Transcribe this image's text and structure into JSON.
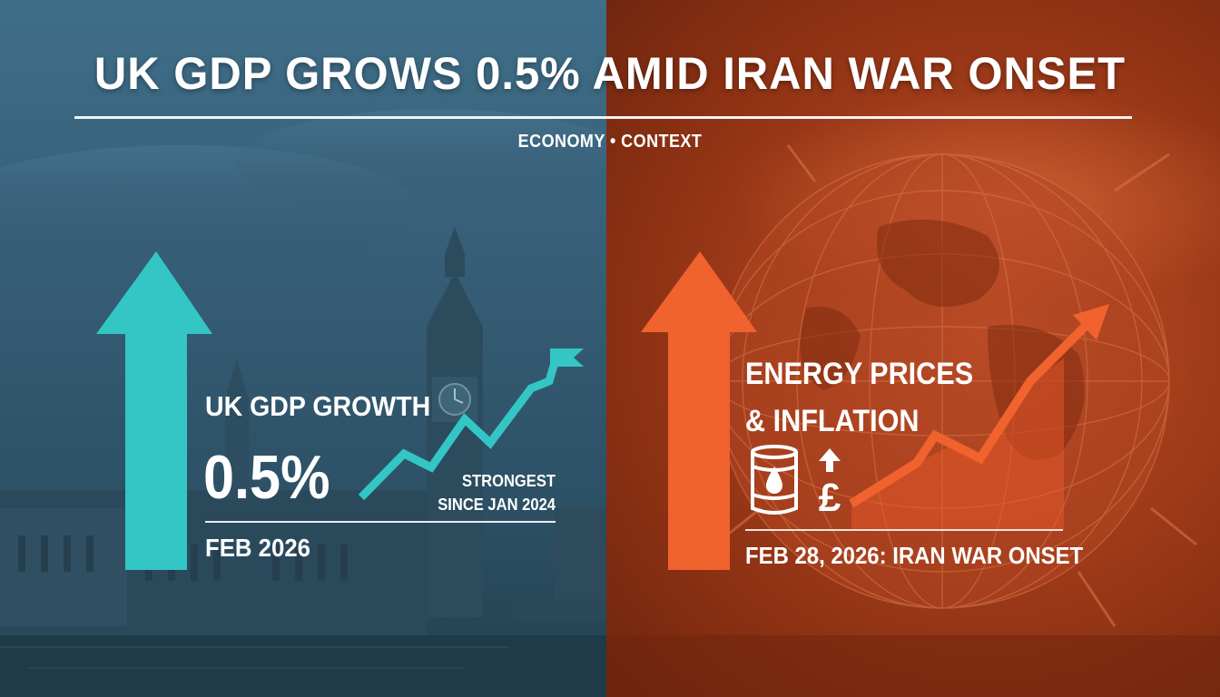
{
  "headline": "UK GDP GROWS 0.5% AMID IRAN WAR ONSET",
  "category": "ECONOMY • CONTEXT",
  "left_panel": {
    "label": "UK GDP GROWTH",
    "value": "0.5%",
    "note": "STRONGEST SINCE JAN 2024",
    "date": "FEB 2026"
  },
  "right_panel": {
    "title": "ENERGY PRICES & INFLATION",
    "date": "FEB 28, 2026: IRAN WAR ONSET"
  },
  "icons": {
    "left_arrow": "up-arrow-icon",
    "left_trend": "trend-line-flag-icon",
    "right_arrow": "up-arrow-icon",
    "right_trend": "trend-line-arrow-icon",
    "barrel": "oil-barrel-icon",
    "pound": "pound-up-icon"
  },
  "colors": {
    "teal": "#33c6c4",
    "orange": "#f0622e",
    "left_bg": "#3a6680",
    "right_bg": "#a63f1c"
  }
}
